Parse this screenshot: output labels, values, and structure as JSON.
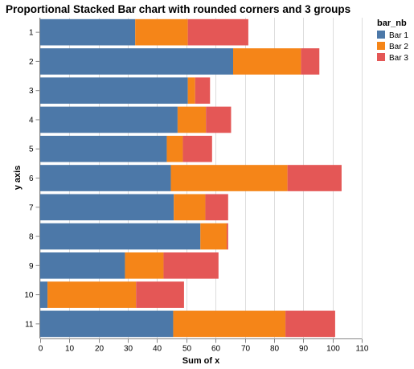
{
  "chart_data": {
    "type": "bar",
    "orientation": "horizontal",
    "stacked": true,
    "title": "Proportional Stacked Bar chart with rounded corners and 3 groups",
    "xlabel": "Sum of x",
    "ylabel": "y axis",
    "xlim": [
      0,
      110
    ],
    "x_ticks": [
      0,
      10,
      20,
      30,
      40,
      50,
      60,
      70,
      80,
      90,
      100,
      110
    ],
    "grid": true,
    "categories": [
      "1",
      "2",
      "3",
      "4",
      "5",
      "6",
      "7",
      "8",
      "9",
      "10",
      "11"
    ],
    "legend": {
      "title": "bar_nb",
      "position": "top-right"
    },
    "series": [
      {
        "name": "Bar 1",
        "color": "#4c78a8",
        "values": [
          32.5,
          66,
          50.5,
          47,
          43.3,
          44.7,
          45.7,
          54.8,
          29,
          2.5,
          45.5
        ]
      },
      {
        "name": "Bar 2",
        "color": "#f58518",
        "values": [
          18,
          23.2,
          2.5,
          9.7,
          5.5,
          39.9,
          10.8,
          9,
          13.2,
          30.3,
          38.4
        ]
      },
      {
        "name": "Bar 3",
        "color": "#e45756",
        "values": [
          20.7,
          6.3,
          5.1,
          8.6,
          10,
          18.5,
          7.8,
          0.5,
          18.8,
          16.4,
          17
        ]
      }
    ]
  }
}
